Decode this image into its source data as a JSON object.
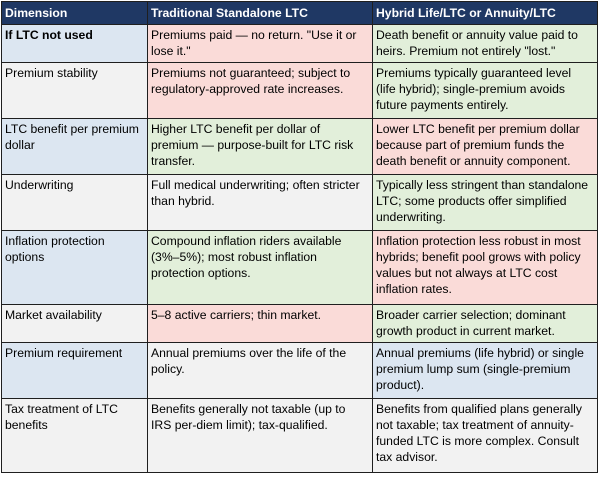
{
  "table": {
    "headers": [
      "Dimension",
      "Traditional Standalone LTC",
      "Hybrid Life/LTC or Annuity/LTC"
    ],
    "rows": [
      {
        "dimension": "If LTC not used",
        "traditional": "Premiums paid — no return. \"Use it or lose it.\"",
        "hybrid": "Death benefit or annuity value paid to heirs. Premium not entirely \"lost.\""
      },
      {
        "dimension": "Premium stability",
        "traditional": "Premiums not guaranteed; subject to regulatory-approved rate increases.",
        "hybrid": "Premiums typically guaranteed level (life hybrid); single-premium avoids future payments entirely."
      },
      {
        "dimension": "LTC benefit per premium dollar",
        "traditional": "Higher LTC benefit per dollar of premium — purpose-built for LTC risk transfer.",
        "hybrid": "Lower LTC benefit per premium dollar because part of premium funds the death benefit or annuity component."
      },
      {
        "dimension": "Underwriting",
        "traditional": "Full medical underwriting; often stricter than hybrid.",
        "hybrid": "Typically less stringent than standalone LTC; some products offer simplified underwriting."
      },
      {
        "dimension": "Inflation protection options",
        "traditional": "Compound inflation riders available (3%–5%); most robust inflation protection options.",
        "hybrid": "Inflation protection less robust in most hybrids; benefit pool grows with policy values but not always at LTC cost inflation rates."
      },
      {
        "dimension": "Market availability",
        "traditional": "5–8 active carriers; thin market.",
        "hybrid": "Broader carrier selection; dominant growth product in current market."
      },
      {
        "dimension": "Premium requirement",
        "traditional": "Annual premiums over the life of the policy.",
        "hybrid": "Annual premiums (life hybrid) or single premium lump sum (single-premium product)."
      },
      {
        "dimension": "Tax treatment of LTC benefits",
        "traditional": "Benefits generally not taxable (up to IRS per-diem limit); tax-qualified.",
        "hybrid": "Benefits from qualified plans generally not taxable; tax treatment of annuity-funded LTC is more complex. Consult tax advisor."
      }
    ]
  },
  "colors": {
    "header_bg": "#1f3864",
    "header_text": "#ffffff",
    "dimension_blue": "#dce6f1",
    "dimension_gray": "#f2f2f2",
    "unfavorable_red": "#fadbd8",
    "favorable_green": "#e2efda",
    "border": "#1f1f1f"
  }
}
